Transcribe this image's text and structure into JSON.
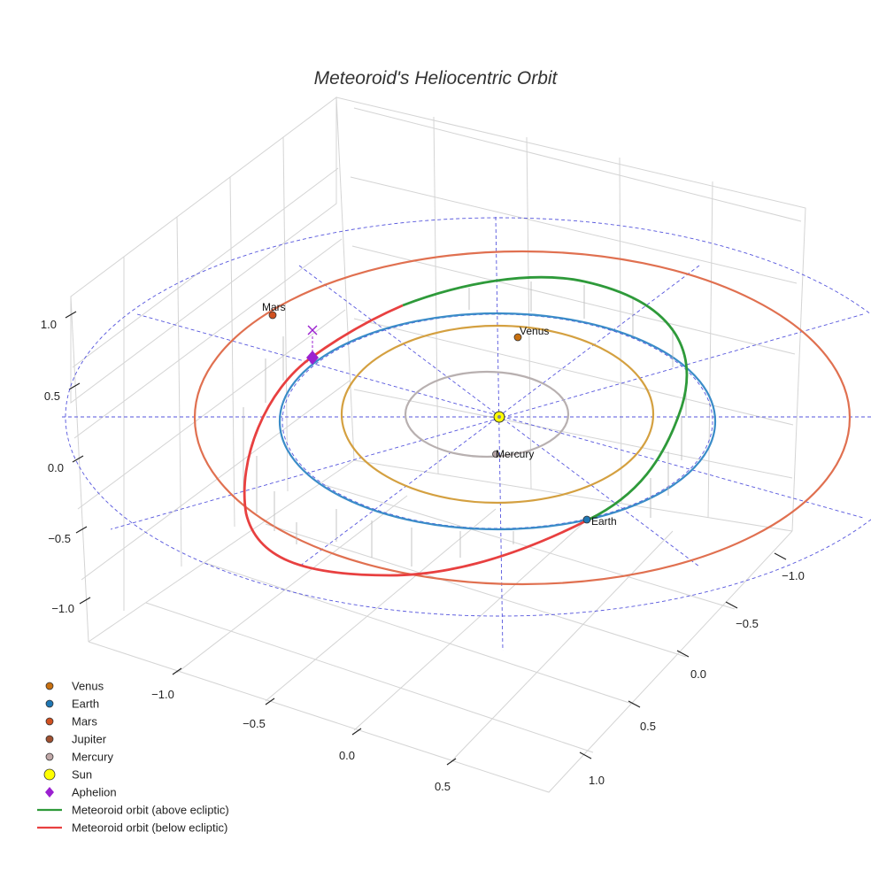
{
  "chart_data": {
    "type": "line",
    "title": "Meteoroid's Heliocentric Orbit",
    "axes": {
      "x_ticks": [
        "−1.0",
        "−0.5",
        "0.0",
        "0.5"
      ],
      "y_ticks": [
        "−1.0",
        "−0.5",
        "0.0",
        "0.5",
        "1.0"
      ],
      "z_ticks": [
        "−1.0",
        "−0.5",
        "0.0",
        "0.5",
        "1.0"
      ],
      "grid": true,
      "projection": "3d"
    },
    "orbits": [
      {
        "name": "Mercury",
        "semi_major_au": 0.39,
        "color": "#b8b0b0"
      },
      {
        "name": "Venus",
        "semi_major_au": 0.72,
        "color": "#d4a040"
      },
      {
        "name": "Earth",
        "semi_major_au": 1.0,
        "color": "#3a8cc8"
      },
      {
        "name": "Mars",
        "semi_major_au": 1.52,
        "color": "#e07050"
      }
    ],
    "planets": [
      {
        "name": "Venus",
        "label": "Venus",
        "color": "#c87010"
      },
      {
        "name": "Earth",
        "label": "Earth",
        "color": "#1f77b4"
      },
      {
        "name": "Mars",
        "label": "Mars",
        "color": "#d05020"
      },
      {
        "name": "Mercury",
        "label": "Mercury",
        "color": "#b0a0a0"
      }
    ],
    "meteoroid": {
      "above_color": "#2e9a3a",
      "below_color": "#e84040",
      "aphelion_color": "#9b20d0"
    },
    "legend": {
      "placement": "bottom-left",
      "items": [
        {
          "label": "Venus",
          "kind": "dot",
          "color": "#c87010"
        },
        {
          "label": "Earth",
          "kind": "dot",
          "color": "#1f77b4"
        },
        {
          "label": "Mars",
          "kind": "dot",
          "color": "#d05020"
        },
        {
          "label": "Jupiter",
          "kind": "dot",
          "color": "#a05030"
        },
        {
          "label": "Mercury",
          "kind": "dot",
          "color": "#c0a8a8"
        },
        {
          "label": "Sun",
          "kind": "sun",
          "color": "#ffff00"
        },
        {
          "label": "Aphelion",
          "kind": "diamond",
          "color": "#9b20d0"
        },
        {
          "label": "Meteoroid orbit (above ecliptic)",
          "kind": "line",
          "color": "#2e9a3a"
        },
        {
          "label": "Meteoroid orbit (below ecliptic)",
          "kind": "line",
          "color": "#e84040"
        }
      ]
    }
  }
}
